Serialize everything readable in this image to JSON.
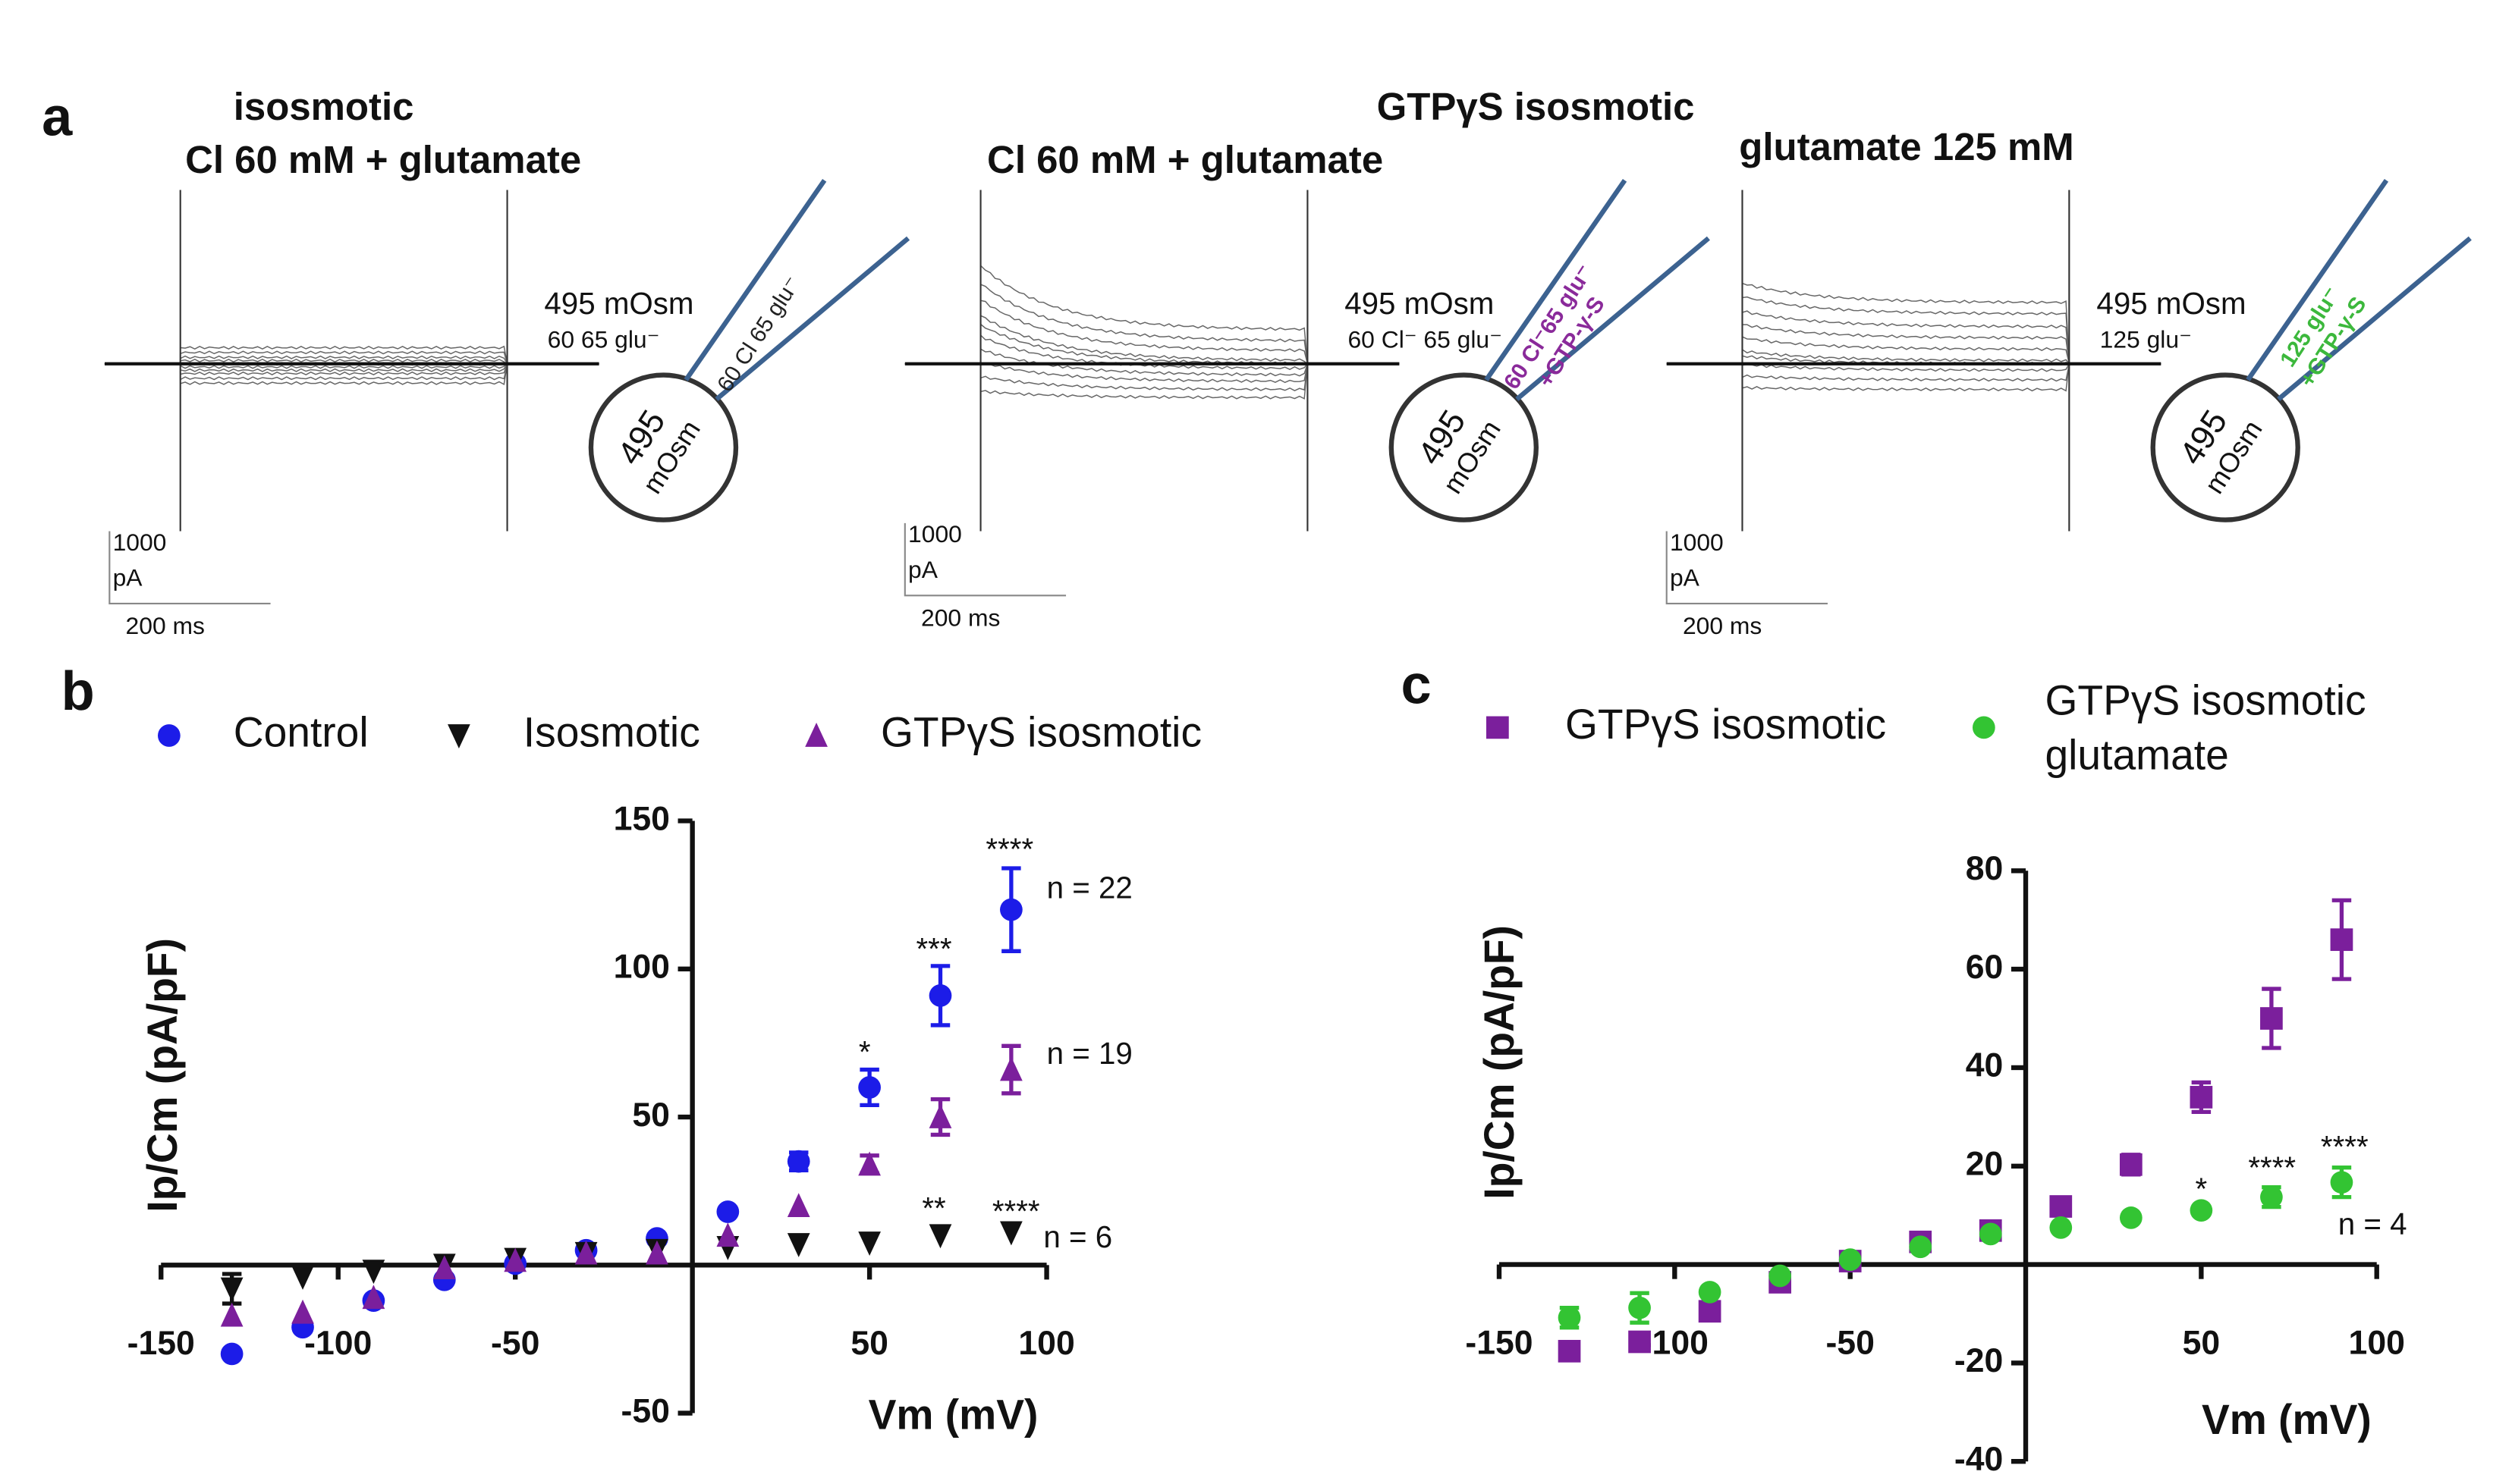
{
  "panel_labels": [
    "a",
    "b",
    "c"
  ],
  "group_title": "GTPγS isosmotic",
  "recordings": [
    {
      "title": [
        "isosmotic",
        "Cl 60 mM + glutamate"
      ],
      "bath": [
        "495 mOsm",
        "60 65 glu⁻"
      ],
      "pipette": [
        "60 Cl 65 glu⁻"
      ],
      "pipette_color": "#222222",
      "cell": [
        "495",
        "mOsm"
      ],
      "scale": [
        "1000",
        "pA",
        "200 ms"
      ]
    },
    {
      "title": [
        "Cl 60 mM + glutamate"
      ],
      "bath": [
        "495 mOsm",
        "60 Cl⁻ 65 glu⁻"
      ],
      "pipette": [
        "60 Cl⁻65 glu⁻",
        "+GTP-γ-S"
      ],
      "pipette_color": "#8a2a9a",
      "cell": [
        "495",
        "mOsm"
      ],
      "scale": [
        "1000",
        "pA",
        "200 ms"
      ]
    },
    {
      "title": [
        "glutamate 125 mM"
      ],
      "bath": [
        "495 mOsm",
        "125 glu⁻"
      ],
      "pipette": [
        "125 glu⁻",
        "+GTP-γ-S"
      ],
      "pipette_color": "#3cb83c",
      "cell": [
        "495",
        "mOsm"
      ],
      "scale": [
        "1000",
        "pA",
        "200 ms"
      ]
    }
  ],
  "chart_data": [
    {
      "type": "scatter",
      "xlabel": "Vm (mV)",
      "ylabel": "Ip/Cm (pA/pF)",
      "xlim": [
        -150,
        100
      ],
      "ylim": [
        -50,
        150
      ],
      "xticks": [
        -150,
        -100,
        -50,
        50,
        100
      ],
      "yticks": [
        -50,
        50,
        100,
        150
      ],
      "x": [
        -130,
        -110,
        -90,
        -70,
        -50,
        -30,
        -10,
        10,
        30,
        50,
        70,
        90
      ],
      "series": [
        {
          "name": "Control",
          "color": "#1c1ce8",
          "marker": "circle",
          "values": [
            -30,
            -21,
            -12,
            -5,
            0.5,
            5,
            9,
            18,
            35,
            60,
            91,
            120
          ],
          "error": [
            null,
            null,
            null,
            null,
            null,
            null,
            null,
            null,
            3,
            6,
            10,
            14
          ]
        },
        {
          "name": "Isosmotic",
          "color": "#111111",
          "marker": "triangle-down",
          "values": [
            -8,
            -4,
            -2,
            0,
            2,
            4,
            5,
            6,
            7,
            7.5,
            10,
            11
          ],
          "error": [
            5,
            null,
            null,
            null,
            null,
            null,
            null,
            null,
            null,
            null,
            null,
            null
          ]
        },
        {
          "name": "GTPγS isosmotic",
          "color": "#7b1f9c",
          "marker": "triangle-up",
          "values": [
            -17,
            -16,
            -11,
            -1,
            1.5,
            4,
            4,
            10,
            20,
            34,
            50,
            66
          ],
          "error": [
            null,
            null,
            null,
            null,
            null,
            null,
            null,
            null,
            null,
            3,
            6,
            8
          ]
        }
      ],
      "annotations": [
        "*",
        "***",
        "****",
        "n = 22",
        "n = 19",
        "**",
        "****",
        "n = 6"
      ]
    },
    {
      "type": "scatter",
      "xlabel": "Vm (mV)",
      "ylabel": "Ip/Cm (pA/pF)",
      "xlim": [
        -150,
        100
      ],
      "ylim": [
        -40,
        80
      ],
      "xticks": [
        -150,
        -100,
        -50,
        50,
        100
      ],
      "yticks": [
        -40,
        -20,
        20,
        40,
        60,
        80
      ],
      "x": [
        -130,
        -110,
        -90,
        -70,
        -50,
        -30,
        -10,
        10,
        30,
        50,
        70,
        90
      ],
      "series": [
        {
          "name": "GTPγS isosmotic",
          "color": "#7b1f9c",
          "marker": "square",
          "values": [
            -17.6,
            -15.7,
            -9.5,
            -3.6,
            0.7,
            4.6,
            6.9,
            11.8,
            20.3,
            34,
            50,
            66
          ],
          "error": [
            null,
            null,
            null,
            null,
            null,
            null,
            null,
            null,
            2,
            3,
            6,
            8
          ]
        },
        {
          "name": "GTPγS isosmotic glutamate",
          "color": "#33c433",
          "marker": "circle",
          "values": [
            -10.8,
            -8.8,
            -5.6,
            -2.3,
            1,
            3.6,
            6.2,
            7.5,
            9.5,
            11,
            13.7,
            16.7
          ],
          "error": [
            2,
            3,
            null,
            null,
            null,
            null,
            null,
            null,
            null,
            null,
            2,
            3
          ]
        }
      ],
      "annotations": [
        "*",
        "****",
        "****",
        "n = 4"
      ]
    }
  ]
}
